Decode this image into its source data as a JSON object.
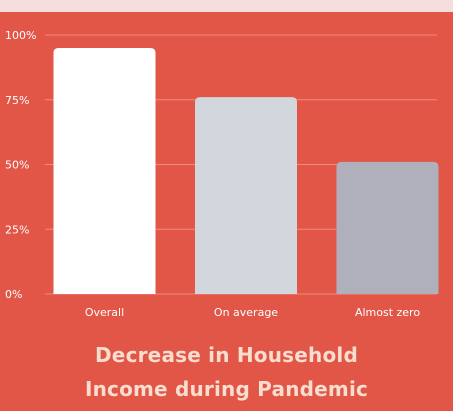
{
  "chart_data": {
    "type": "bar",
    "categories": [
      "Overall",
      "On average",
      "Almost zero"
    ],
    "values": [
      95,
      76,
      51
    ],
    "colors": [
      "#ffffff",
      "#d2d7dd",
      "#b0b0bd"
    ],
    "y_ticks": [
      0,
      25,
      50,
      75,
      100
    ],
    "y_tick_labels": [
      "0%",
      "25%",
      "50%",
      "75%",
      "100%"
    ],
    "ylim": [
      0,
      100
    ],
    "grid": true,
    "title": "Decrease in Household\nIncome during Pandemic",
    "xlabel": "",
    "ylabel": ""
  },
  "colors": {
    "background": "#e15647",
    "top_band": "#f7dede",
    "gridline": "#ef8a7f",
    "tick_text": "#ffffff",
    "title_text": "#f9ddcf"
  }
}
